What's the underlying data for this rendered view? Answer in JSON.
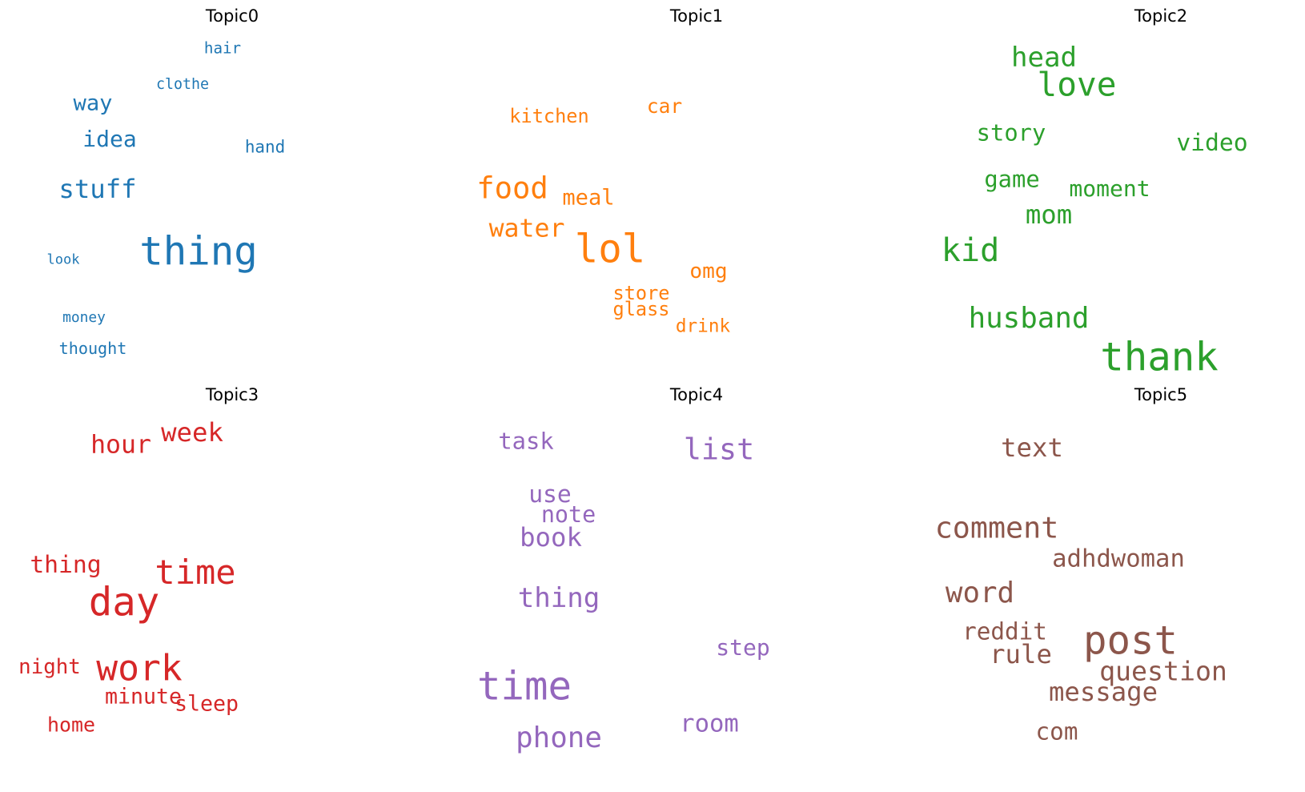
{
  "chart_data": {
    "type": "wordcloud",
    "panels": [
      {
        "title": "Topic0",
        "color": "#1f77b4",
        "words": [
          {
            "text": "thing",
            "weight": 1.0
          },
          {
            "text": "stuff",
            "weight": 0.62
          },
          {
            "text": "idea",
            "weight": 0.52
          },
          {
            "text": "way",
            "weight": 0.5
          },
          {
            "text": "hand",
            "weight": 0.36
          },
          {
            "text": "thought",
            "weight": 0.34
          },
          {
            "text": "hair",
            "weight": 0.32
          },
          {
            "text": "clothe",
            "weight": 0.3
          },
          {
            "text": "money",
            "weight": 0.29
          },
          {
            "text": "look",
            "weight": 0.27
          }
        ]
      },
      {
        "title": "Topic1",
        "color": "#ff7f0e",
        "words": [
          {
            "text": "lol",
            "weight": 1.0
          },
          {
            "text": "food",
            "weight": 0.73
          },
          {
            "text": "water",
            "weight": 0.6
          },
          {
            "text": "meal",
            "weight": 0.5
          },
          {
            "text": "omg",
            "weight": 0.48
          },
          {
            "text": "car",
            "weight": 0.44
          },
          {
            "text": "kitchen",
            "weight": 0.42
          },
          {
            "text": "store",
            "weight": 0.42
          },
          {
            "text": "glass",
            "weight": 0.42
          },
          {
            "text": "drink",
            "weight": 0.4
          }
        ]
      },
      {
        "title": "Topic2",
        "color": "#2ca02c",
        "words": [
          {
            "text": "thank",
            "weight": 1.0
          },
          {
            "text": "love",
            "weight": 0.82
          },
          {
            "text": "kid",
            "weight": 0.8
          },
          {
            "text": "husband",
            "weight": 0.7
          },
          {
            "text": "head",
            "weight": 0.66
          },
          {
            "text": "mom",
            "weight": 0.62
          },
          {
            "text": "video",
            "weight": 0.56
          },
          {
            "text": "story",
            "weight": 0.54
          },
          {
            "text": "game",
            "weight": 0.54
          },
          {
            "text": "moment",
            "weight": 0.52
          }
        ]
      },
      {
        "title": "Topic3",
        "color": "#d62728",
        "words": [
          {
            "text": "day",
            "weight": 1.0
          },
          {
            "text": "work",
            "weight": 0.9
          },
          {
            "text": "time",
            "weight": 0.84
          },
          {
            "text": "week",
            "weight": 0.62
          },
          {
            "text": "hour",
            "weight": 0.6
          },
          {
            "text": "thing",
            "weight": 0.56
          },
          {
            "text": "sleep",
            "weight": 0.49
          },
          {
            "text": "minute",
            "weight": 0.49
          },
          {
            "text": "night",
            "weight": 0.47
          },
          {
            "text": "home",
            "weight": 0.45
          }
        ]
      },
      {
        "title": "Topic4",
        "color": "#9467bd",
        "words": [
          {
            "text": "time",
            "weight": 1.0
          },
          {
            "text": "list",
            "weight": 0.72
          },
          {
            "text": "phone",
            "weight": 0.7
          },
          {
            "text": "thing",
            "weight": 0.66
          },
          {
            "text": "book",
            "weight": 0.62
          },
          {
            "text": "room",
            "weight": 0.58
          },
          {
            "text": "use",
            "weight": 0.56
          },
          {
            "text": "task",
            "weight": 0.54
          },
          {
            "text": "note",
            "weight": 0.53
          },
          {
            "text": "step",
            "weight": 0.52
          }
        ]
      },
      {
        "title": "Topic5",
        "color": "#8c564b",
        "words": [
          {
            "text": "post",
            "weight": 1.0
          },
          {
            "text": "comment",
            "weight": 0.72
          },
          {
            "text": "word",
            "weight": 0.7
          },
          {
            "text": "question",
            "weight": 0.64
          },
          {
            "text": "text",
            "weight": 0.62
          },
          {
            "text": "rule",
            "weight": 0.62
          },
          {
            "text": "message",
            "weight": 0.62
          },
          {
            "text": "adhdwoman",
            "weight": 0.58
          },
          {
            "text": "reddit",
            "weight": 0.55
          },
          {
            "text": "com",
            "weight": 0.55
          }
        ]
      }
    ]
  }
}
